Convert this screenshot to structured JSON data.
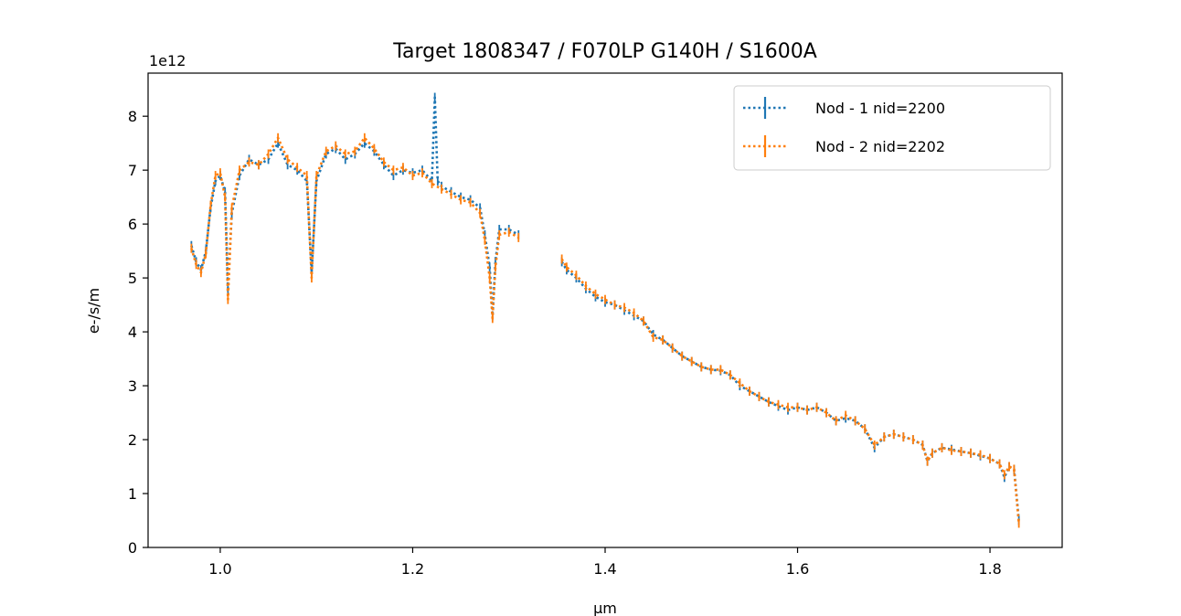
{
  "colors": {
    "series1": "#1f77b4",
    "series2": "#ff7f0e",
    "axes": "#000000",
    "legend_border": "#cccccc"
  },
  "chart_data": {
    "type": "line",
    "title": "Target  1808347 / F070LP G140H / S1600A",
    "xlabel": "µm",
    "ylabel": "e-/s/m",
    "y_offset_label": "1e12",
    "y_scale_factor": 1000000000000.0,
    "xlim": [
      0.925,
      1.875
    ],
    "ylim": [
      0,
      8.8
    ],
    "x_ticks": [
      1.0,
      1.2,
      1.4,
      1.6,
      1.8
    ],
    "x_tick_labels": [
      "1.0",
      "1.2",
      "1.4",
      "1.6",
      "1.8"
    ],
    "y_ticks": [
      0,
      1,
      2,
      3,
      4,
      5,
      6,
      7,
      8
    ],
    "y_tick_labels": [
      "0",
      "1",
      "2",
      "3",
      "4",
      "5",
      "6",
      "7",
      "8"
    ],
    "grid": false,
    "legend_position": "top-right",
    "series": [
      {
        "name": "Nod - 1 nid=2200",
        "color": "#1f77b4",
        "linestyle": "dotted-with-errorbars",
        "segments": [
          [
            [
              0.97,
              5.6
            ],
            [
              0.975,
              5.3
            ],
            [
              0.98,
              5.15
            ],
            [
              0.985,
              5.5
            ],
            [
              0.99,
              6.3
            ],
            [
              0.995,
              6.8
            ],
            [
              1.0,
              6.9
            ],
            [
              1.005,
              6.6
            ],
            [
              1.008,
              4.8
            ],
            [
              1.012,
              6.2
            ],
            [
              1.02,
              6.9
            ],
            [
              1.03,
              7.2
            ],
            [
              1.04,
              7.1
            ],
            [
              1.05,
              7.2
            ],
            [
              1.06,
              7.5
            ],
            [
              1.07,
              7.1
            ],
            [
              1.08,
              7.0
            ],
            [
              1.09,
              6.8
            ],
            [
              1.095,
              5.1
            ],
            [
              1.1,
              6.8
            ],
            [
              1.11,
              7.3
            ],
            [
              1.12,
              7.4
            ],
            [
              1.13,
              7.2
            ],
            [
              1.14,
              7.3
            ],
            [
              1.15,
              7.5
            ],
            [
              1.16,
              7.35
            ],
            [
              1.17,
              7.1
            ],
            [
              1.18,
              6.9
            ],
            [
              1.19,
              7.0
            ],
            [
              1.2,
              6.95
            ],
            [
              1.21,
              7.0
            ],
            [
              1.22,
              6.8
            ],
            [
              1.223,
              8.35
            ],
            [
              1.226,
              6.8
            ],
            [
              1.23,
              6.7
            ],
            [
              1.24,
              6.6
            ],
            [
              1.25,
              6.5
            ],
            [
              1.26,
              6.45
            ],
            [
              1.27,
              6.3
            ],
            [
              1.275,
              5.8
            ],
            [
              1.28,
              5.2
            ],
            [
              1.283,
              4.3
            ],
            [
              1.286,
              5.3
            ],
            [
              1.29,
              5.9
            ],
            [
              1.3,
              5.9
            ],
            [
              1.31,
              5.8
            ]
          ],
          [
            [
              1.355,
              5.3
            ],
            [
              1.36,
              5.15
            ],
            [
              1.37,
              5.0
            ],
            [
              1.38,
              4.8
            ],
            [
              1.39,
              4.65
            ],
            [
              1.4,
              4.55
            ],
            [
              1.41,
              4.5
            ],
            [
              1.42,
              4.4
            ],
            [
              1.43,
              4.3
            ],
            [
              1.44,
              4.2
            ],
            [
              1.45,
              3.95
            ],
            [
              1.46,
              3.85
            ],
            [
              1.47,
              3.7
            ],
            [
              1.48,
              3.55
            ],
            [
              1.49,
              3.45
            ],
            [
              1.5,
              3.35
            ],
            [
              1.51,
              3.3
            ],
            [
              1.52,
              3.28
            ],
            [
              1.53,
              3.2
            ],
            [
              1.54,
              3.0
            ],
            [
              1.55,
              2.9
            ],
            [
              1.56,
              2.8
            ],
            [
              1.57,
              2.7
            ],
            [
              1.58,
              2.62
            ],
            [
              1.59,
              2.55
            ],
            [
              1.6,
              2.6
            ],
            [
              1.61,
              2.55
            ],
            [
              1.62,
              2.6
            ],
            [
              1.63,
              2.5
            ],
            [
              1.64,
              2.35
            ],
            [
              1.65,
              2.4
            ],
            [
              1.66,
              2.35
            ],
            [
              1.67,
              2.2
            ],
            [
              1.68,
              1.85
            ],
            [
              1.69,
              2.05
            ],
            [
              1.7,
              2.1
            ],
            [
              1.71,
              2.05
            ],
            [
              1.72,
              2.0
            ],
            [
              1.73,
              1.9
            ],
            [
              1.735,
              1.6
            ],
            [
              1.74,
              1.75
            ],
            [
              1.75,
              1.85
            ],
            [
              1.76,
              1.82
            ],
            [
              1.77,
              1.78
            ],
            [
              1.78,
              1.75
            ],
            [
              1.79,
              1.7
            ],
            [
              1.8,
              1.65
            ],
            [
              1.81,
              1.55
            ],
            [
              1.815,
              1.3
            ],
            [
              1.82,
              1.5
            ],
            [
              1.825,
              1.45
            ],
            [
              1.83,
              0.5
            ]
          ]
        ]
      },
      {
        "name": "Nod - 2 nid=2202",
        "color": "#ff7f0e",
        "linestyle": "dotted-with-errorbars",
        "segments": [
          [
            [
              0.97,
              5.55
            ],
            [
              0.975,
              5.25
            ],
            [
              0.98,
              5.1
            ],
            [
              0.985,
              5.45
            ],
            [
              0.99,
              6.35
            ],
            [
              0.995,
              6.9
            ],
            [
              1.0,
              6.95
            ],
            [
              1.005,
              6.5
            ],
            [
              1.008,
              4.6
            ],
            [
              1.012,
              6.3
            ],
            [
              1.02,
              7.0
            ],
            [
              1.03,
              7.15
            ],
            [
              1.04,
              7.1
            ],
            [
              1.05,
              7.3
            ],
            [
              1.06,
              7.6
            ],
            [
              1.07,
              7.2
            ],
            [
              1.08,
              7.05
            ],
            [
              1.09,
              6.9
            ],
            [
              1.095,
              5.0
            ],
            [
              1.1,
              6.9
            ],
            [
              1.11,
              7.35
            ],
            [
              1.12,
              7.45
            ],
            [
              1.13,
              7.3
            ],
            [
              1.14,
              7.35
            ],
            [
              1.15,
              7.6
            ],
            [
              1.16,
              7.4
            ],
            [
              1.17,
              7.15
            ],
            [
              1.18,
              7.0
            ],
            [
              1.19,
              7.05
            ],
            [
              1.2,
              6.9
            ],
            [
              1.21,
              6.95
            ],
            [
              1.22,
              6.75
            ],
            [
              1.23,
              6.65
            ],
            [
              1.24,
              6.55
            ],
            [
              1.25,
              6.45
            ],
            [
              1.26,
              6.4
            ],
            [
              1.27,
              6.2
            ],
            [
              1.275,
              5.7
            ],
            [
              1.28,
              5.0
            ],
            [
              1.283,
              4.25
            ],
            [
              1.286,
              5.2
            ],
            [
              1.29,
              5.8
            ],
            [
              1.3,
              5.85
            ],
            [
              1.31,
              5.75
            ]
          ],
          [
            [
              1.355,
              5.35
            ],
            [
              1.36,
              5.2
            ],
            [
              1.37,
              5.05
            ],
            [
              1.38,
              4.85
            ],
            [
              1.39,
              4.7
            ],
            [
              1.4,
              4.6
            ],
            [
              1.41,
              4.5
            ],
            [
              1.42,
              4.45
            ],
            [
              1.43,
              4.35
            ],
            [
              1.44,
              4.2
            ],
            [
              1.45,
              3.9
            ],
            [
              1.46,
              3.85
            ],
            [
              1.47,
              3.7
            ],
            [
              1.48,
              3.55
            ],
            [
              1.49,
              3.45
            ],
            [
              1.5,
              3.35
            ],
            [
              1.51,
              3.3
            ],
            [
              1.52,
              3.3
            ],
            [
              1.53,
              3.2
            ],
            [
              1.54,
              3.05
            ],
            [
              1.55,
              2.9
            ],
            [
              1.56,
              2.8
            ],
            [
              1.57,
              2.7
            ],
            [
              1.58,
              2.65
            ],
            [
              1.59,
              2.6
            ],
            [
              1.6,
              2.6
            ],
            [
              1.61,
              2.55
            ],
            [
              1.62,
              2.6
            ],
            [
              1.63,
              2.5
            ],
            [
              1.64,
              2.35
            ],
            [
              1.65,
              2.45
            ],
            [
              1.66,
              2.35
            ],
            [
              1.67,
              2.2
            ],
            [
              1.68,
              1.9
            ],
            [
              1.69,
              2.05
            ],
            [
              1.7,
              2.1
            ],
            [
              1.71,
              2.05
            ],
            [
              1.72,
              2.0
            ],
            [
              1.73,
              1.9
            ],
            [
              1.735,
              1.6
            ],
            [
              1.74,
              1.75
            ],
            [
              1.75,
              1.85
            ],
            [
              1.76,
              1.8
            ],
            [
              1.77,
              1.78
            ],
            [
              1.78,
              1.75
            ],
            [
              1.79,
              1.72
            ],
            [
              1.8,
              1.65
            ],
            [
              1.81,
              1.55
            ],
            [
              1.815,
              1.35
            ],
            [
              1.82,
              1.5
            ],
            [
              1.825,
              1.45
            ],
            [
              1.83,
              0.45
            ]
          ]
        ]
      }
    ]
  }
}
